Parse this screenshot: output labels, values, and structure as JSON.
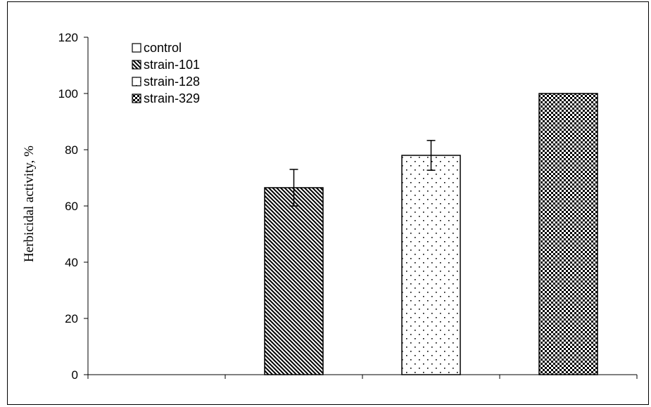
{
  "chart_data": {
    "type": "bar",
    "title": "",
    "xlabel": "",
    "ylabel": "Herbicidal activity, %",
    "ylim": [
      0,
      120
    ],
    "yticks": [
      0,
      20,
      40,
      60,
      80,
      100,
      120
    ],
    "grid": false,
    "legend_placement": "top-left",
    "series": [
      {
        "name": "control",
        "value": 0,
        "error": 0,
        "pattern": "none"
      },
      {
        "name": "strain-101",
        "value": 66.5,
        "error": 6.5,
        "pattern": "diagonal"
      },
      {
        "name": "strain-128",
        "value": 78,
        "error": 5.3,
        "pattern": "dots"
      },
      {
        "name": "strain-329",
        "value": 100,
        "error": 0,
        "pattern": "checker"
      }
    ],
    "colors": {
      "ink": "#000000",
      "background": "#ffffff"
    }
  }
}
